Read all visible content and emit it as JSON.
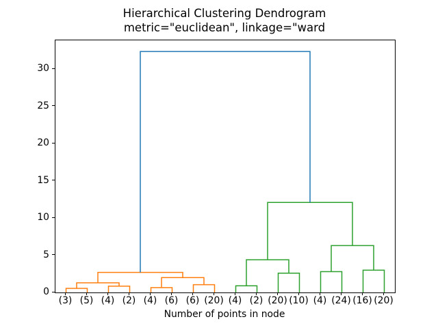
{
  "chart_data": {
    "type": "dendrogram",
    "title": "Hierarchical Clustering Dendrogram",
    "subtitle": "metric=\"euclidean\", linkage=\"ward",
    "xlabel": "Number of points in node",
    "leaf_labels": [
      "(3)",
      "(5)",
      "(4)",
      "(2)",
      "(4)",
      "(6)",
      "(6)",
      "(20)",
      "(4)",
      "(2)",
      "(20)",
      "(10)",
      "(4)",
      "(24)",
      "(16)",
      "(20)"
    ],
    "leaf_positions": [
      5,
      15,
      25,
      35,
      45,
      55,
      65,
      75,
      85,
      95,
      105,
      115,
      125,
      135,
      145,
      155
    ],
    "yticks": [
      0,
      5,
      10,
      15,
      20,
      25,
      30
    ],
    "xlim": [
      0,
      160
    ],
    "ylim": [
      0,
      33.9
    ],
    "grid": false,
    "legend": "none",
    "colors": {
      "blue": "#1f77b4",
      "orange": "#ff7f0e",
      "green": "#2ca02c"
    },
    "links": [
      {
        "x1": 5,
        "y1": 0,
        "x2": 15,
        "y2": 0,
        "h": 0.55,
        "color": "orange"
      },
      {
        "x1": 25,
        "y1": 0,
        "x2": 35,
        "y2": 0,
        "h": 0.85,
        "color": "orange"
      },
      {
        "x1": 10,
        "y1": 0.55,
        "x2": 30,
        "y2": 0.85,
        "h": 1.3,
        "color": "orange"
      },
      {
        "x1": 45,
        "y1": 0,
        "x2": 55,
        "y2": 0,
        "h": 0.65,
        "color": "orange"
      },
      {
        "x1": 65,
        "y1": 0,
        "x2": 75,
        "y2": 0,
        "h": 1.05,
        "color": "orange"
      },
      {
        "x1": 50,
        "y1": 0.65,
        "x2": 70,
        "y2": 1.05,
        "h": 2.0,
        "color": "orange"
      },
      {
        "x1": 20,
        "y1": 1.3,
        "x2": 60,
        "y2": 2.0,
        "h": 2.7,
        "color": "orange"
      },
      {
        "x1": 85,
        "y1": 0,
        "x2": 95,
        "y2": 0,
        "h": 0.9,
        "color": "green"
      },
      {
        "x1": 105,
        "y1": 0,
        "x2": 115,
        "y2": 0,
        "h": 2.6,
        "color": "green"
      },
      {
        "x1": 90,
        "y1": 0.9,
        "x2": 110,
        "y2": 2.6,
        "h": 4.4,
        "color": "green"
      },
      {
        "x1": 125,
        "y1": 0,
        "x2": 135,
        "y2": 0,
        "h": 2.8,
        "color": "green"
      },
      {
        "x1": 145,
        "y1": 0,
        "x2": 155,
        "y2": 0,
        "h": 3.0,
        "color": "green"
      },
      {
        "x1": 130,
        "y1": 2.8,
        "x2": 150,
        "y2": 3.0,
        "h": 6.3,
        "color": "green"
      },
      {
        "x1": 100,
        "y1": 4.4,
        "x2": 140,
        "y2": 6.3,
        "h": 12.1,
        "color": "green"
      },
      {
        "x1": 40,
        "y1": 2.7,
        "x2": 120,
        "y2": 12.1,
        "h": 32.4,
        "color": "blue"
      }
    ]
  }
}
